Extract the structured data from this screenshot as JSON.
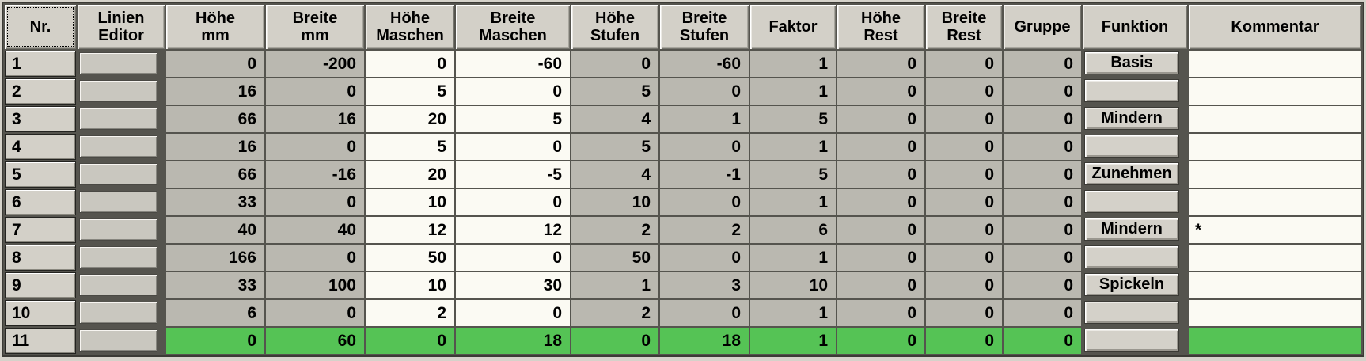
{
  "table": {
    "selected_row_nr": "11",
    "colors": {
      "row_highlight_green": "#55c355",
      "cell_gray": "#bab8b0",
      "cell_white": "#fbfaf3",
      "button_face": "#d3d0c8",
      "grid_line": "#55544e"
    },
    "columns": [
      {
        "id": "nr",
        "label": "Nr."
      },
      {
        "id": "linien_editor",
        "label": "Linien\nEditor"
      },
      {
        "id": "hoehe_mm",
        "label": "Höhe\nmm"
      },
      {
        "id": "breite_mm",
        "label": "Breite\nmm"
      },
      {
        "id": "hoehe_maschen",
        "label": "Höhe\nMaschen"
      },
      {
        "id": "breite_maschen",
        "label": "Breite\nMaschen"
      },
      {
        "id": "hoehe_stufen",
        "label": "Höhe\nStufen"
      },
      {
        "id": "breite_stufen",
        "label": "Breite\nStufen"
      },
      {
        "id": "faktor",
        "label": "Faktor"
      },
      {
        "id": "hoehe_rest",
        "label": "Höhe\nRest"
      },
      {
        "id": "breite_rest",
        "label": "Breite\nRest"
      },
      {
        "id": "gruppe",
        "label": "Gruppe"
      },
      {
        "id": "funktion",
        "label": "Funktion"
      },
      {
        "id": "kommentar",
        "label": "Kommentar"
      }
    ],
    "rows": [
      {
        "nr": "1",
        "hoehe_mm": "0",
        "breite_mm": "-200",
        "hoehe_maschen": "0",
        "breite_maschen": "-60",
        "hoehe_stufen": "0",
        "breite_stufen": "-60",
        "faktor": "1",
        "hoehe_rest": "0",
        "breite_rest": "0",
        "gruppe": "0",
        "funktion": "Basis",
        "kommentar": ""
      },
      {
        "nr": "2",
        "hoehe_mm": "16",
        "breite_mm": "0",
        "hoehe_maschen": "5",
        "breite_maschen": "0",
        "hoehe_stufen": "5",
        "breite_stufen": "0",
        "faktor": "1",
        "hoehe_rest": "0",
        "breite_rest": "0",
        "gruppe": "0",
        "funktion": "",
        "kommentar": ""
      },
      {
        "nr": "3",
        "hoehe_mm": "66",
        "breite_mm": "16",
        "hoehe_maschen": "20",
        "breite_maschen": "5",
        "hoehe_stufen": "4",
        "breite_stufen": "1",
        "faktor": "5",
        "hoehe_rest": "0",
        "breite_rest": "0",
        "gruppe": "0",
        "funktion": "Mindern",
        "kommentar": ""
      },
      {
        "nr": "4",
        "hoehe_mm": "16",
        "breite_mm": "0",
        "hoehe_maschen": "5",
        "breite_maschen": "0",
        "hoehe_stufen": "5",
        "breite_stufen": "0",
        "faktor": "1",
        "hoehe_rest": "0",
        "breite_rest": "0",
        "gruppe": "0",
        "funktion": "",
        "kommentar": ""
      },
      {
        "nr": "5",
        "hoehe_mm": "66",
        "breite_mm": "-16",
        "hoehe_maschen": "20",
        "breite_maschen": "-5",
        "hoehe_stufen": "4",
        "breite_stufen": "-1",
        "faktor": "5",
        "hoehe_rest": "0",
        "breite_rest": "0",
        "gruppe": "0",
        "funktion": "Zunehmen",
        "kommentar": ""
      },
      {
        "nr": "6",
        "hoehe_mm": "33",
        "breite_mm": "0",
        "hoehe_maschen": "10",
        "breite_maschen": "0",
        "hoehe_stufen": "10",
        "breite_stufen": "0",
        "faktor": "1",
        "hoehe_rest": "0",
        "breite_rest": "0",
        "gruppe": "0",
        "funktion": "",
        "kommentar": ""
      },
      {
        "nr": "7",
        "hoehe_mm": "40",
        "breite_mm": "40",
        "hoehe_maschen": "12",
        "breite_maschen": "12",
        "hoehe_stufen": "2",
        "breite_stufen": "2",
        "faktor": "6",
        "hoehe_rest": "0",
        "breite_rest": "0",
        "gruppe": "0",
        "funktion": "Mindern",
        "kommentar": "*"
      },
      {
        "nr": "8",
        "hoehe_mm": "166",
        "breite_mm": "0",
        "hoehe_maschen": "50",
        "breite_maschen": "0",
        "hoehe_stufen": "50",
        "breite_stufen": "0",
        "faktor": "1",
        "hoehe_rest": "0",
        "breite_rest": "0",
        "gruppe": "0",
        "funktion": "",
        "kommentar": ""
      },
      {
        "nr": "9",
        "hoehe_mm": "33",
        "breite_mm": "100",
        "hoehe_maschen": "10",
        "breite_maschen": "30",
        "hoehe_stufen": "1",
        "breite_stufen": "3",
        "faktor": "10",
        "hoehe_rest": "0",
        "breite_rest": "0",
        "gruppe": "0",
        "funktion": "Spickeln",
        "kommentar": ""
      },
      {
        "nr": "10",
        "hoehe_mm": "6",
        "breite_mm": "0",
        "hoehe_maschen": "2",
        "breite_maschen": "0",
        "hoehe_stufen": "2",
        "breite_stufen": "0",
        "faktor": "1",
        "hoehe_rest": "0",
        "breite_rest": "0",
        "gruppe": "0",
        "funktion": "",
        "kommentar": ""
      },
      {
        "nr": "11",
        "hoehe_mm": "0",
        "breite_mm": "60",
        "hoehe_maschen": "0",
        "breite_maschen": "18",
        "hoehe_stufen": "0",
        "breite_stufen": "18",
        "faktor": "1",
        "hoehe_rest": "0",
        "breite_rest": "0",
        "gruppe": "0",
        "funktion": "",
        "kommentar": ""
      }
    ]
  }
}
